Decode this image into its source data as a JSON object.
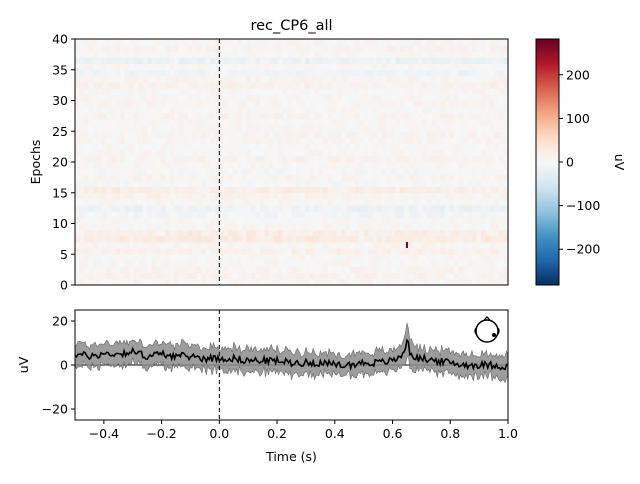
{
  "chart_data": [
    {
      "type": "heatmap",
      "title": "rec_CP6_all",
      "xlabel": "",
      "ylabel": "Epochs",
      "x_range": [
        -0.5,
        1.0
      ],
      "y_range": [
        0,
        40
      ],
      "y_ticks": [
        0,
        5,
        10,
        15,
        20,
        25,
        30,
        35,
        40
      ],
      "y_tick_labels": [
        "0",
        "5",
        "10",
        "15",
        "20",
        "25",
        "30",
        "35",
        "40"
      ],
      "event_time": 0.0,
      "epochs": 40,
      "colorbar": {
        "label": "uV",
        "range": [
          -282,
          282
        ],
        "ticks": [
          -200,
          -100,
          0,
          100,
          200
        ],
        "tick_labels": [
          "−200",
          "−100",
          "0",
          "100",
          "200"
        ],
        "colormap": [
          "#053061",
          "#2166ac",
          "#4393c3",
          "#92c5de",
          "#d1e5f0",
          "#f7f7f7",
          "#fddbc7",
          "#f4a582",
          "#d6604d",
          "#b2182b",
          "#67001f"
        ]
      },
      "epoch_bias_uV": [
        5,
        10,
        8,
        4,
        2,
        12,
        6,
        22,
        18,
        5,
        2,
        -8,
        -14,
        4,
        9,
        18,
        -4,
        6,
        -3,
        4,
        10,
        5,
        2,
        6,
        8,
        4,
        3,
        8,
        2,
        6,
        4,
        2,
        12,
        8,
        -10,
        3,
        -16,
        2,
        8,
        4
      ],
      "annotations": [
        {
          "time": 0.65,
          "epoch": 6.5,
          "value_uV": 270
        }
      ]
    },
    {
      "type": "line",
      "title": "",
      "xlabel": "Time (s)",
      "ylabel": "uV",
      "x_range": [
        -0.5,
        1.0
      ],
      "y_range": [
        -25,
        25
      ],
      "x_ticks": [
        -0.4,
        -0.2,
        0.0,
        0.2,
        0.4,
        0.6,
        0.8,
        1.0
      ],
      "x_tick_labels": [
        "−0.4",
        "−0.2",
        "0.0",
        "0.2",
        "0.4",
        "0.6",
        "0.8",
        "1.0"
      ],
      "y_ticks": [
        -20,
        0,
        20
      ],
      "y_tick_labels": [
        "−20",
        "0",
        "20"
      ],
      "event_time": 0.0,
      "series": [
        {
          "name": "mean",
          "color": "#000000",
          "x": [
            -0.5,
            -0.45,
            -0.4,
            -0.35,
            -0.3,
            -0.25,
            -0.2,
            -0.15,
            -0.1,
            -0.05,
            0.0,
            0.05,
            0.1,
            0.15,
            0.2,
            0.25,
            0.3,
            0.35,
            0.4,
            0.45,
            0.5,
            0.55,
            0.6,
            0.62,
            0.64,
            0.65,
            0.66,
            0.68,
            0.7,
            0.75,
            0.8,
            0.85,
            0.9,
            0.95,
            1.0
          ],
          "values": [
            5,
            4,
            5,
            5,
            6,
            4,
            5,
            4,
            4,
            3,
            3,
            3,
            2,
            2,
            2,
            1,
            1,
            1,
            0,
            0,
            1,
            1,
            2,
            3,
            6,
            12,
            6,
            3,
            3,
            2,
            1,
            0,
            0,
            0,
            -1
          ]
        }
      ],
      "ci_halfwidth_uV": [
        5,
        5,
        5,
        5,
        5,
        5,
        5,
        5,
        5,
        5,
        5,
        5,
        5,
        5,
        5,
        5,
        5,
        5,
        5,
        5,
        5,
        5,
        5,
        5,
        6,
        8,
        6,
        5,
        5,
        5,
        5,
        5,
        5,
        5,
        5
      ],
      "sensor_inset": "head-outline-sensor-cp6"
    }
  ]
}
